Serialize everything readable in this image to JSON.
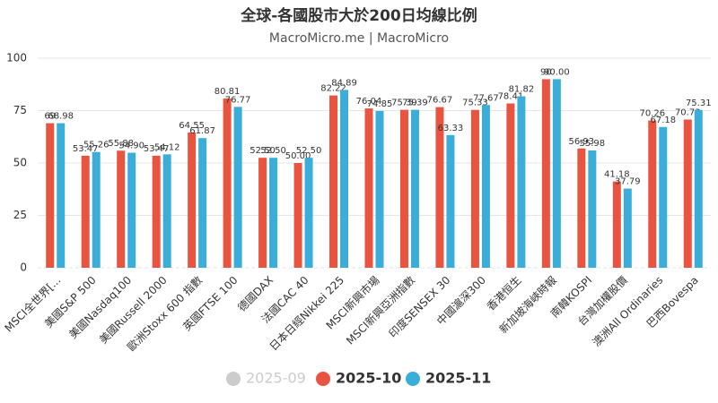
{
  "chart_data": {
    "type": "bar",
    "title": "全球-各國股市大於200日均線比例",
    "subtitle": "MacroMicro.me | MacroMicro",
    "categories": [
      "MSCI全世界[...",
      "美國S&P 500",
      "美國Nasdaq100",
      "美國Russell 2000",
      "歐洲Stoxx 600 指數",
      "英國FTSE 100",
      "德國DAX",
      "法國CAC 40",
      "日本日經Nikkei 225",
      "MSCI新興市場",
      "MSCI新興亞洲指數",
      "印度SENSEX 30",
      "中國滬深300",
      "香港恒生",
      "新加坡海峽時報",
      "南韓KOSPI",
      "台灣加權股價",
      "澳洲All Ordinaries",
      "巴西Bovespa"
    ],
    "series": [
      {
        "name": "2025-09",
        "color": "#cccccc",
        "hidden": true,
        "values": [
          null,
          null,
          null,
          null,
          null,
          null,
          null,
          null,
          null,
          null,
          null,
          null,
          null,
          null,
          null,
          null,
          null,
          null,
          null
        ]
      },
      {
        "name": "2025-10",
        "color": "#e8543f",
        "values": [
          69,
          53.47,
          55.88,
          53.47,
          64.55,
          80.81,
          52.5,
          50,
          82.22,
          76.04,
          75.39,
          76.67,
          75.33,
          78.41,
          90,
          56.93,
          41.18,
          70.26,
          70.73
        ],
        "value_labels": [
          "69",
          "53.47",
          "55.88",
          "53.47",
          "64.55",
          "80.81",
          "52.50",
          "50.00",
          "82.22",
          "76.04",
          "75.39",
          "76.67",
          "75.33",
          "78.41",
          "90",
          "56.93",
          "41.18",
          "70.26",
          "70.73"
        ]
      },
      {
        "name": "2025-11",
        "color": "#3aaed8",
        "values": [
          68.98,
          55.26,
          54.9,
          54.12,
          61.87,
          76.77,
          52.5,
          52.5,
          84.89,
          74.85,
          75.39,
          63.33,
          77.67,
          81.82,
          90,
          55.98,
          37.79,
          67.18,
          75.31
        ],
        "value_labels": [
          "68.98",
          "55.26",
          "54.90",
          "54.12",
          "61.87",
          "76.77",
          "52.50",
          "52.50",
          "84.89",
          "74.85",
          "75.39",
          "63.33",
          "77.67",
          "81.82",
          "90.00",
          "55.98",
          "37.79",
          "67.18",
          "75.31"
        ]
      }
    ],
    "ylim": [
      0,
      100
    ],
    "yticks": [
      0,
      25,
      50,
      75,
      100
    ],
    "grid": true
  }
}
